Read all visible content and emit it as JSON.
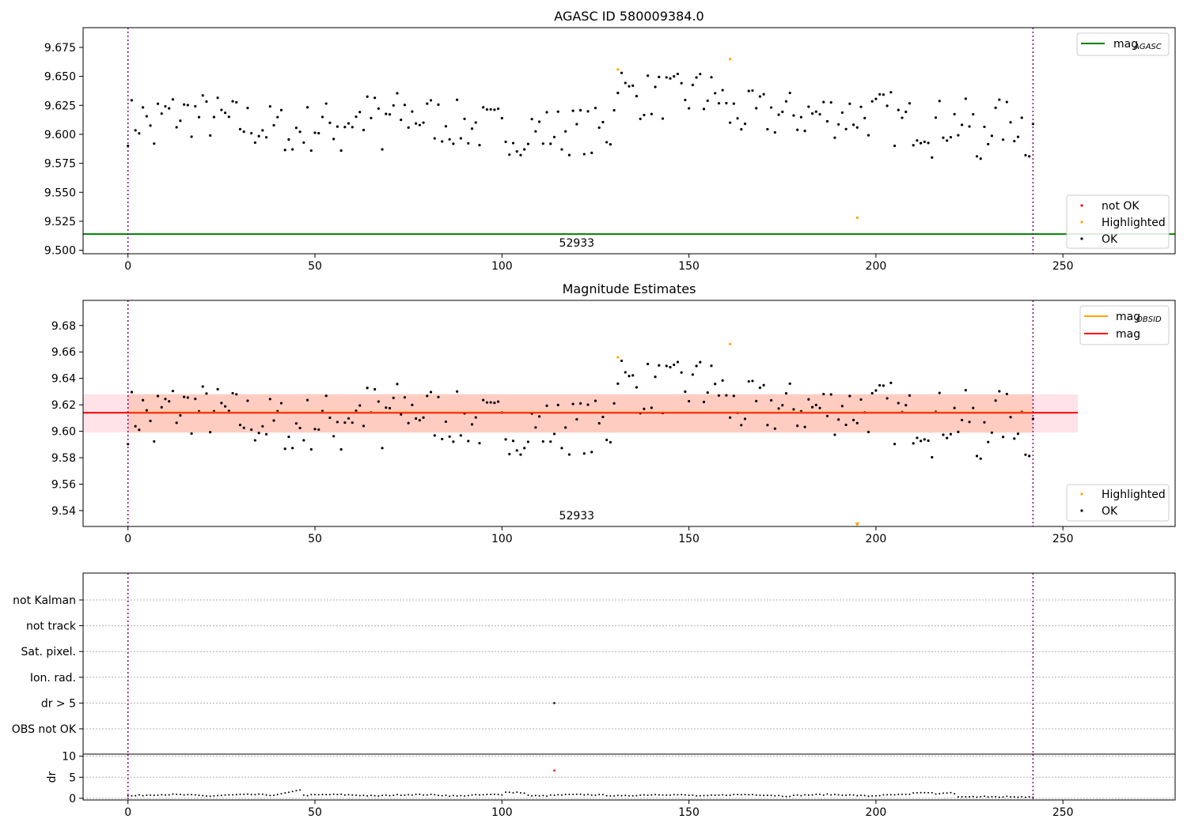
{
  "chart_data": [
    {
      "type": "scatter",
      "title": "AGASC ID 580009384.0",
      "xlim": [
        -12,
        280
      ],
      "ylim": [
        9.497,
        9.692
      ],
      "xticks": [
        0,
        50,
        100,
        150,
        200,
        250
      ],
      "yticks": [
        9.5,
        9.525,
        9.55,
        9.575,
        9.6,
        9.625,
        9.65,
        9.675
      ],
      "ytick_labels": [
        "9.500",
        "9.525",
        "9.550",
        "9.575",
        "9.600",
        "9.625",
        "9.650",
        "9.675"
      ],
      "vlines": [
        0,
        242
      ],
      "hline": {
        "y": 9.514,
        "color": "#008000",
        "label": "mag",
        "label_sub": "AGASC"
      },
      "annotation": {
        "x": 120,
        "text": "52933"
      },
      "highlighted_points": [
        [
          131,
          9.656
        ],
        [
          161,
          9.665
        ],
        [
          195,
          9.528
        ]
      ],
      "legend_top": {
        "position": "upper right",
        "entries": [
          {
            "label": "mag",
            "sub": "AGASC",
            "color": "#008000"
          }
        ]
      },
      "legend_bottom": {
        "position": "lower right",
        "entries": [
          {
            "label": "not OK",
            "color": "#ff0000"
          },
          {
            "label": "Highlighted",
            "color": "#ffa500"
          },
          {
            "label": "OK",
            "color": "#000000"
          }
        ]
      }
    },
    {
      "type": "scatter",
      "title": "Magnitude Estimates",
      "xlim": [
        -12,
        280
      ],
      "ylim": [
        9.528,
        9.699
      ],
      "xticks": [
        0,
        50,
        100,
        150,
        200,
        250
      ],
      "yticks": [
        9.54,
        9.56,
        9.58,
        9.6,
        9.62,
        9.64,
        9.66,
        9.68
      ],
      "ytick_labels": [
        "9.54",
        "9.56",
        "9.58",
        "9.60",
        "9.62",
        "9.64",
        "9.66",
        "9.68"
      ],
      "vlines": [
        0,
        242
      ],
      "mag_line": {
        "y": 9.614,
        "x_range": [
          -12,
          254
        ],
        "color": "#ff0000"
      },
      "mag_band": {
        "y_range": [
          9.599,
          9.628
        ],
        "x_range": [
          -12,
          254
        ]
      },
      "annotation": {
        "x": 120,
        "text": "52933"
      },
      "highlighted_points": [
        [
          131,
          9.656
        ],
        [
          161,
          9.666
        ]
      ],
      "offscale_marker": {
        "x": 195
      },
      "legend_top": {
        "position": "upper right",
        "entries": [
          {
            "label": "mag",
            "sub": "OBSID",
            "color": "#ffa500"
          },
          {
            "label": "mag",
            "sub": "",
            "color": "#ff0000"
          }
        ]
      },
      "legend_bottom": {
        "position": "lower right",
        "entries": [
          {
            "label": "Highlighted",
            "color": "#ffa500"
          },
          {
            "label": "OK",
            "color": "#000000"
          }
        ]
      }
    },
    {
      "type": "scatter",
      "xlim": [
        -12,
        280
      ],
      "categories": [
        "not Kalman",
        "not track",
        "Sat. pixel.",
        "Ion. rad.",
        "dr > 5",
        "OBS not OK"
      ],
      "vlines": [
        0,
        242
      ],
      "flag_points": [
        {
          "x": 114,
          "category": "dr > 5"
        }
      ]
    },
    {
      "type": "scatter",
      "ylabel": "dr",
      "xlim": [
        -12,
        280
      ],
      "ylim": [
        -0.4,
        10.5
      ],
      "xticks": [
        0,
        50,
        100,
        150,
        200,
        250
      ],
      "yticks": [
        0,
        5,
        10
      ],
      "vlines": [
        0,
        242
      ],
      "dr_highlight": {
        "x": 114,
        "y": 6.6,
        "color": "#ff0000"
      }
    }
  ],
  "colors": {
    "ok": "#000000",
    "highlighted": "#ffa500",
    "not_ok": "#ff0000",
    "vline": "#800080",
    "agasc": "#008000",
    "obsid": "#ffa500",
    "mag": "#ff0000"
  }
}
